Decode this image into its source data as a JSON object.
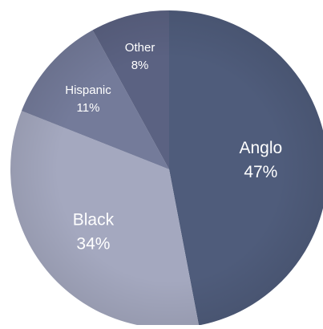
{
  "chart_data": {
    "type": "pie",
    "start_angle_deg": 0,
    "direction": "clockwise",
    "slices": [
      {
        "label": "Anglo",
        "value": 47,
        "value_label": "47%",
        "color": "#4f5c7b"
      },
      {
        "label": "Black",
        "value": 34,
        "value_label": "34%",
        "color": "#a4a8bf"
      },
      {
        "label": "Hispanic",
        "value": 11,
        "value_label": "11%",
        "color": "#747b9a"
      },
      {
        "label": "Other",
        "value": 8,
        "value_label": "8%",
        "color": "#5b6282"
      }
    ]
  }
}
